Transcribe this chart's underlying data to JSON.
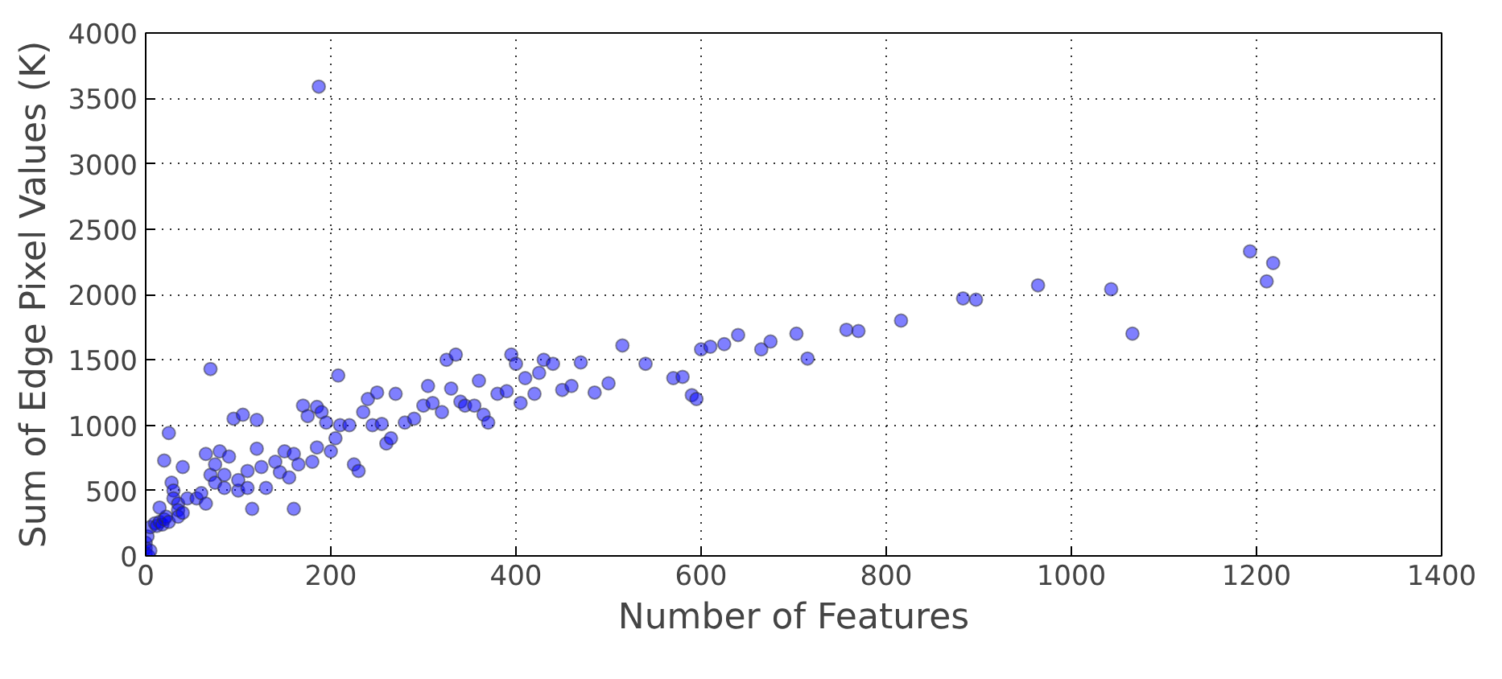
{
  "chart_data": {
    "type": "scatter",
    "xlabel": "Number of Features",
    "ylabel": "Sum of Edge Pixel Values (K)",
    "xlim": [
      0,
      1400
    ],
    "ylim": [
      0,
      4000
    ],
    "xticks": [
      0,
      200,
      400,
      600,
      800,
      1000,
      1200,
      1400
    ],
    "yticks": [
      0,
      500,
      1000,
      1500,
      2000,
      2500,
      3000,
      3500,
      4000
    ],
    "grid": true,
    "marker": "circle",
    "series": [
      {
        "color": "#0000ff",
        "x": [
          0,
          0,
          0,
          2,
          3,
          5,
          5,
          10,
          12,
          15,
          18,
          20,
          22,
          25,
          15,
          20,
          25,
          28,
          30,
          30,
          35,
          35,
          35,
          40,
          40,
          45,
          55,
          60,
          65,
          65,
          70,
          70,
          75,
          75,
          80,
          85,
          85,
          90,
          95,
          100,
          100,
          105,
          110,
          110,
          115,
          120,
          120,
          125,
          130,
          140,
          145,
          150,
          155,
          160,
          160,
          165,
          170,
          175,
          180,
          185,
          185,
          187,
          190,
          195,
          200,
          205,
          208,
          210,
          220,
          225,
          230,
          235,
          240,
          245,
          250,
          255,
          260,
          265,
          270,
          280,
          290,
          300,
          305,
          310,
          320,
          325,
          330,
          335,
          340,
          345,
          355,
          360,
          365,
          370,
          380,
          390,
          395,
          400,
          405,
          410,
          420,
          425,
          430,
          440,
          450,
          460,
          470,
          485,
          500,
          515,
          540,
          570,
          580,
          590,
          595,
          600,
          610,
          625,
          640,
          665,
          675,
          703,
          715,
          757,
          770,
          816,
          883,
          897,
          964,
          1043,
          1066,
          1193,
          1211,
          1218
        ],
        "values": [
          20,
          60,
          100,
          150,
          0,
          40,
          220,
          250,
          230,
          260,
          240,
          280,
          300,
          260,
          370,
          730,
          940,
          560,
          500,
          440,
          400,
          350,
          300,
          680,
          330,
          440,
          440,
          480,
          400,
          780,
          1430,
          620,
          560,
          700,
          800,
          520,
          620,
          760,
          1050,
          500,
          580,
          1080,
          650,
          520,
          360,
          1040,
          820,
          680,
          520,
          720,
          640,
          800,
          600,
          780,
          360,
          700,
          1150,
          1070,
          720,
          1140,
          830,
          3590,
          1100,
          1020,
          800,
          900,
          1380,
          1000,
          1000,
          700,
          650,
          1100,
          1200,
          1000,
          1250,
          1010,
          860,
          900,
          1240,
          1020,
          1050,
          1150,
          1300,
          1170,
          1100,
          1500,
          1280,
          1540,
          1180,
          1150,
          1150,
          1340,
          1080,
          1020,
          1240,
          1260,
          1540,
          1470,
          1170,
          1360,
          1240,
          1400,
          1500,
          1470,
          1270,
          1300,
          1480,
          1250,
          1320,
          1610,
          1470,
          1360,
          1370,
          1230,
          1200,
          1580,
          1600,
          1620,
          1690,
          1580,
          1640,
          1700,
          1510,
          1730,
          1720,
          1800,
          1970,
          1960,
          2070,
          2040,
          1700,
          2330,
          2100,
          2240
        ]
      }
    ]
  }
}
